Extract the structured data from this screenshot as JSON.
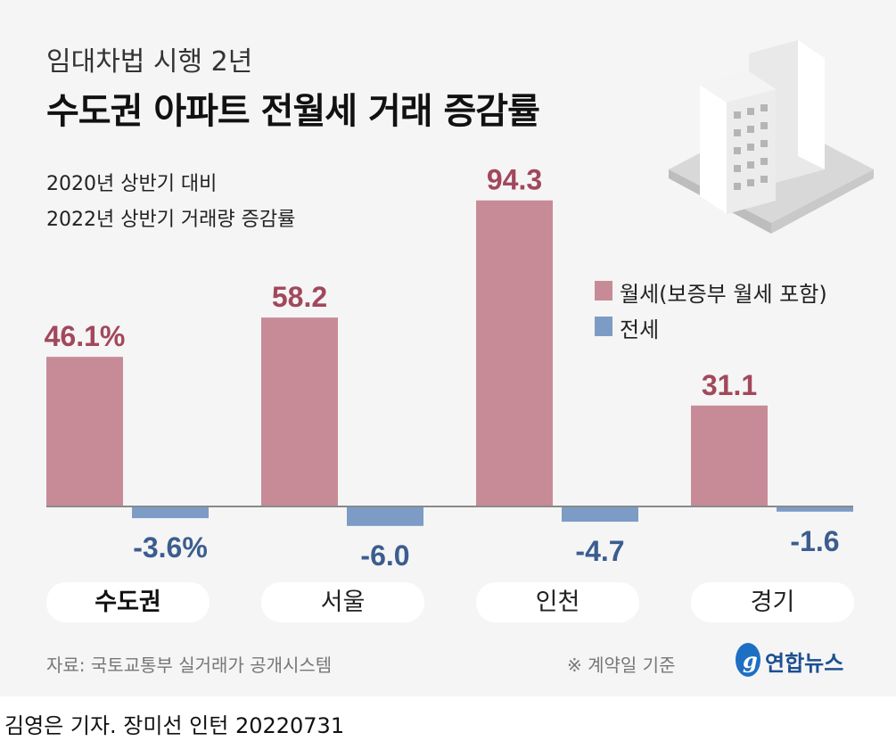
{
  "header": {
    "kicker": "임대차법 시행 2년",
    "title": "수도권 아파트 전월세 거래 증감률",
    "subtitle_line1": "2020년 상반기 대비",
    "subtitle_line2": "2022년 상반기 거래량 증감률"
  },
  "chart_data": {
    "type": "bar",
    "categories": [
      "수도권",
      "서울",
      "인천",
      "경기"
    ],
    "series": [
      {
        "name": "월세(보증부 월세 포함)",
        "values": [
          46.1,
          58.2,
          94.3,
          31.1
        ],
        "labels": [
          "46.1%",
          "58.2",
          "94.3",
          "31.1"
        ],
        "color": "#c78b98",
        "label_color": "#a2485c"
      },
      {
        "name": "전세",
        "values": [
          -3.6,
          -6.0,
          -4.7,
          -1.6
        ],
        "labels": [
          "-3.6%",
          "-6.0",
          "-4.7",
          "-1.6"
        ],
        "color": "#7c9cc6",
        "label_color": "#3b5d8f"
      }
    ],
    "unit": "%",
    "legend": "right",
    "highlighted_category": "수도권"
  },
  "footer": {
    "source": "자료: 국토교통부 실거래가 공개시스템",
    "note": "※ 계약일 기준",
    "logo": "연합뉴스",
    "credit": "김영은 기자. 장미선 인턴  20220731"
  }
}
